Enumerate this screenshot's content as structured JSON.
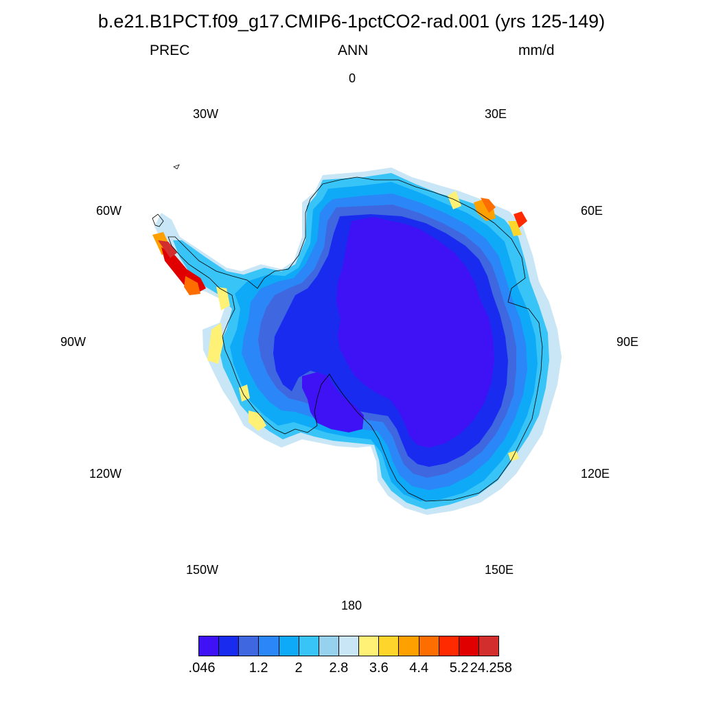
{
  "title": "b.e21.B1PCT.f09_g17.CMIP6-1pctCO2-rad.001 (yrs 125-149)",
  "subtitle": {
    "left": "PREC",
    "center": "ANN",
    "right": "mm/d"
  },
  "longitude_labels": {
    "lon_0": "0",
    "lon_30e": "30E",
    "lon_60e": "60E",
    "lon_90e": "90E",
    "lon_120e": "120E",
    "lon_150e": "150E",
    "lon_180": "180",
    "lon_150w": "150W",
    "lon_120w": "120W",
    "lon_90w": "90W",
    "lon_60w": "60W",
    "lon_30w": "30W"
  },
  "colorbar": {
    "colors": [
      "#3f12f5",
      "#1a2bf0",
      "#3f68e0",
      "#2b86f7",
      "#0eaaf7",
      "#38c4f7",
      "#96d2ee",
      "#c9e6f6",
      "#fff176",
      "#fed52a",
      "#fea000",
      "#fe6d00",
      "#ff2a00",
      "#e00000",
      "#d22e2e"
    ],
    "labels": [
      ".046",
      "1.2",
      "2",
      "2.8",
      "3.6",
      "4.4",
      "5.2",
      "24.258"
    ]
  }
}
